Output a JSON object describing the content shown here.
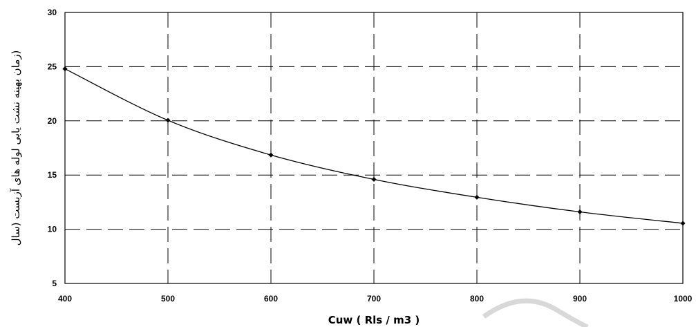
{
  "chart_data": {
    "type": "line",
    "title": "",
    "xlabel": "Cuw ( Rls / m3 )",
    "ylabel": "(زمان بهینه نشت یابی لوله های آزبست (سال",
    "xlim": [
      400,
      1000
    ],
    "ylim": [
      5,
      30
    ],
    "xticks": [
      400,
      500,
      600,
      700,
      800,
      900,
      1000
    ],
    "yticks": [
      5,
      10,
      15,
      20,
      25,
      30
    ],
    "grid": true,
    "legend": "none",
    "series": [
      {
        "x": [
          400,
          500,
          600,
          700,
          800,
          900,
          1000
        ],
        "y": [
          24.8,
          20.05,
          16.85,
          14.6,
          12.95,
          11.6,
          10.55
        ]
      }
    ],
    "colors": {
      "line": "#000000",
      "grid": "#000000",
      "background": "#ffffff"
    }
  }
}
